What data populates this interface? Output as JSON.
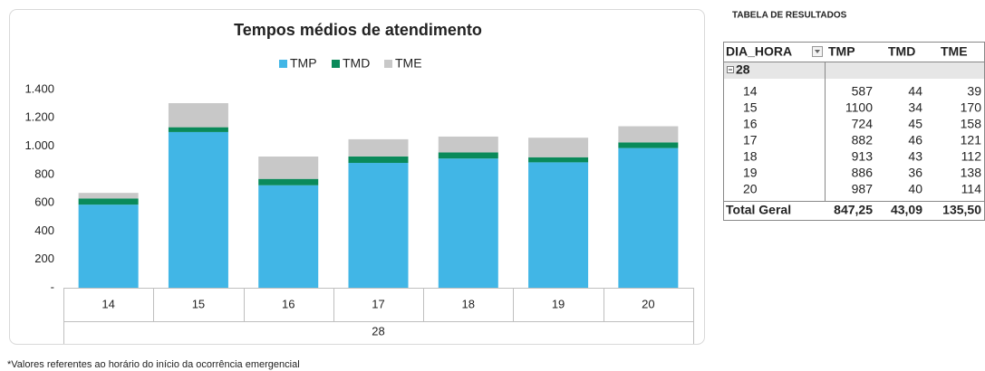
{
  "chart_data": {
    "type": "stacked_bar",
    "title": "Tempos médios de atendimento",
    "categories": [
      "14",
      "15",
      "16",
      "17",
      "18",
      "19",
      "20"
    ],
    "group_label": "28",
    "series": [
      {
        "name": "TMP",
        "color": "#41b6e6",
        "values": [
          587,
          1100,
          724,
          882,
          913,
          886,
          987
        ]
      },
      {
        "name": "TMD",
        "color": "#0a8a5a",
        "values": [
          44,
          34,
          45,
          46,
          43,
          36,
          40
        ]
      },
      {
        "name": "TME",
        "color": "#c8c8c8",
        "values": [
          39,
          170,
          158,
          121,
          112,
          138,
          114
        ]
      }
    ],
    "ylim": [
      0,
      1400
    ],
    "yticks": [
      {
        "value": 0,
        "label": "-"
      },
      200,
      400,
      600,
      800,
      {
        "value": 1000,
        "label": "1.000"
      },
      {
        "value": 1200,
        "label": "1.200"
      },
      {
        "value": 1400,
        "label": "1.400"
      }
    ],
    "grid": false,
    "legend": "top"
  },
  "table": {
    "title": "TABELA DE RESULTADOS",
    "header": [
      "DIA_HORA",
      "TMP",
      "TMD",
      "TME"
    ],
    "total": [
      "Total Geral",
      "847,25",
      "43,09",
      "135,50"
    ]
  },
  "footnote": "*Valores referentes ao horário do início da ocorrência emergencial"
}
